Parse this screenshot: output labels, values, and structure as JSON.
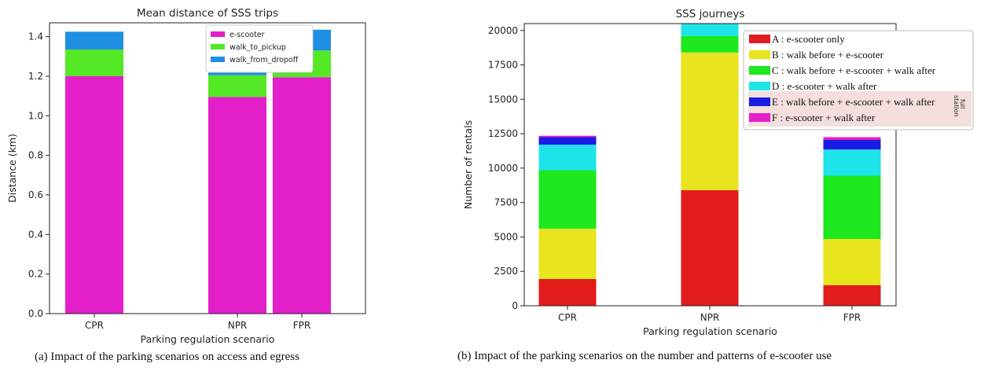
{
  "chart_data": [
    {
      "type": "bar",
      "stacked": true,
      "title": "Mean distance of SSS trips",
      "xlabel": "Parking regulation scenario",
      "ylabel": "Distance (km)",
      "categories": [
        "CPR",
        "NPR",
        "FPR"
      ],
      "ylim": [
        0,
        1.47
      ],
      "yticks": [
        0.0,
        0.2,
        0.4,
        0.6,
        0.8,
        1.0,
        1.2,
        1.4
      ],
      "ytick_labels": [
        "0.0",
        "0.2",
        "0.4",
        "0.6",
        "0.8",
        "1.0",
        "1.2",
        "1.4"
      ],
      "legend_position": "top-center",
      "grid": false,
      "series": [
        {
          "name": "e-scooter",
          "color": "#e31fc9",
          "values": [
            1.2,
            1.095,
            1.195
          ]
        },
        {
          "name": "walk_to_pickup",
          "color": "#55e827",
          "values": [
            0.135,
            0.11,
            0.135
          ]
        },
        {
          "name": "walk_from_dropoff",
          "color": "#1e8fe3",
          "values": [
            0.09,
            0.02,
            0.105
          ]
        }
      ]
    },
    {
      "type": "bar",
      "stacked": true,
      "title": "SSS journeys",
      "xlabel": "Parking regulation scenario",
      "ylabel": "Number of rentals",
      "categories": [
        "CPR",
        "NPR",
        "FPR"
      ],
      "ylim": [
        0,
        20500
      ],
      "yticks": [
        0,
        2500,
        5000,
        7500,
        10000,
        12500,
        15000,
        17500,
        20000
      ],
      "ytick_labels": [
        "0",
        "2500",
        "5000",
        "7500",
        "10000",
        "12500",
        "15000",
        "17500",
        "20000"
      ],
      "legend_position": "top-right",
      "legend_note": "full station",
      "grid": false,
      "series": [
        {
          "name": "A : e-scooter only",
          "color": "#e21c1c",
          "values": [
            1950,
            8400,
            1500
          ]
        },
        {
          "name": "B : walk before + e-scooter",
          "color": "#e8e41e",
          "values": [
            3650,
            10000,
            3350
          ]
        },
        {
          "name": "C : walk before + e-scooter + walk after",
          "color": "#1ee81e",
          "values": [
            4250,
            1200,
            4600
          ]
        },
        {
          "name": "D : e-scooter + walk after",
          "color": "#1ee3e8",
          "values": [
            1850,
            1000,
            1900
          ]
        },
        {
          "name": "E : walk before + e-scooter + walk after",
          "color": "#1b1be3",
          "values": [
            550,
            0,
            700
          ]
        },
        {
          "name": "F : e-scooter + walk after",
          "color": "#e31fc9",
          "values": [
            100,
            0,
            200
          ]
        }
      ]
    }
  ],
  "captions": {
    "a": "(a) Impact of the parking scenarios on access and egress",
    "b": "(b) Impact of the parking scenarios on the number and patterns of e-scooter use"
  },
  "colors": {
    "legend_highlight": "#f4dede",
    "axis": "#222222"
  }
}
